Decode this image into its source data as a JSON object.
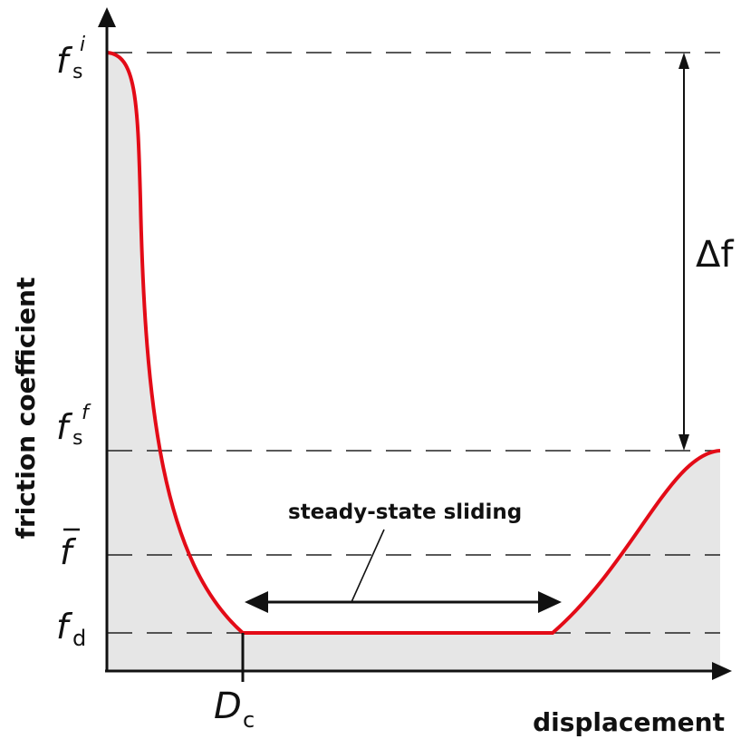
{
  "axes": {
    "y_label": "friction coefficient",
    "x_label": "displacement"
  },
  "levels": {
    "fs_initial": {
      "symbol": "f",
      "subscript": "s",
      "superscript": "i"
    },
    "fs_final": {
      "symbol": "f",
      "subscript": "s",
      "superscript": "f"
    },
    "f_mean": {
      "symbol": "f"
    },
    "f_dynamic": {
      "symbol": "f",
      "subscript": "d"
    }
  },
  "critical_distance": {
    "symbol": "D",
    "subscript": "c"
  },
  "delta": {
    "text": "Δf"
  },
  "annotation": {
    "text": "steady-state sliding"
  },
  "colors": {
    "curve": "#e30b17",
    "fill": "#e6e6e6",
    "axis": "#111111",
    "dashes": "#222222"
  }
}
